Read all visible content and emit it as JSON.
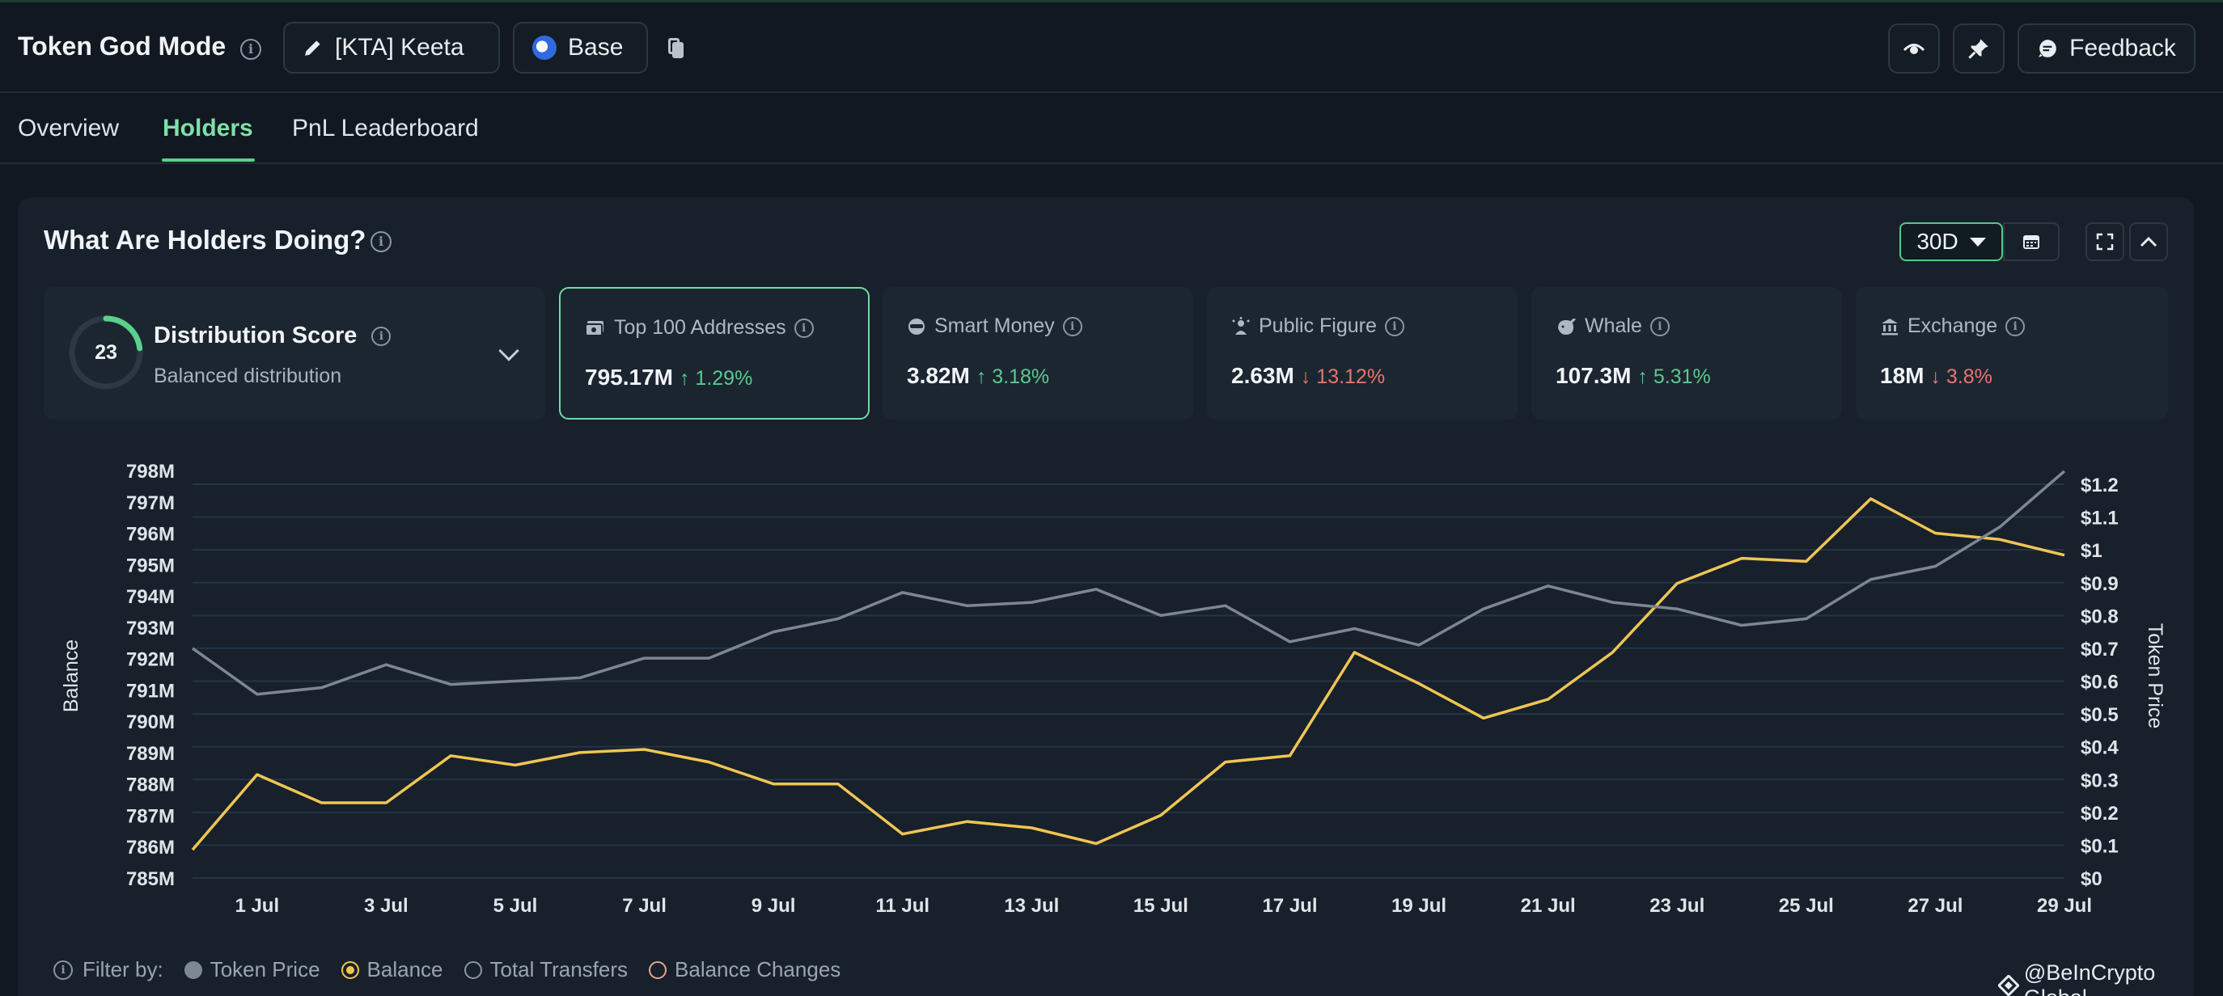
{
  "header": {
    "app_title": "Token God Mode",
    "token_label": "[KTA] Keeta",
    "chain_label": "Base",
    "feedback_label": "Feedback"
  },
  "tabs": [
    {
      "label": "Overview",
      "active": false
    },
    {
      "label": "Holders",
      "active": true
    },
    {
      "label": "PnL Leaderboard",
      "active": false
    }
  ],
  "panel": {
    "title": "What Are Holders Doing?",
    "period": "30D"
  },
  "distribution": {
    "score": "23",
    "score_fraction": 0.23,
    "title": "Distribution Score",
    "subtitle": "Balanced distribution"
  },
  "cards": [
    {
      "label": "Top 100 Addresses",
      "value": "795.17M",
      "change": "↑ 1.29%",
      "direction": "up",
      "icon": "money-icon",
      "selected": true
    },
    {
      "label": "Smart Money",
      "value": "3.82M",
      "change": "↑ 3.18%",
      "direction": "up",
      "icon": "smart-money-icon",
      "selected": false
    },
    {
      "label": "Public Figure",
      "value": "2.63M",
      "change": "↓ 13.12%",
      "direction": "down",
      "icon": "public-figure-icon",
      "selected": false
    },
    {
      "label": "Whale",
      "value": "107.3M",
      "change": "↑ 5.31%",
      "direction": "up",
      "icon": "whale-icon",
      "selected": false
    },
    {
      "label": "Exchange",
      "value": "18M",
      "change": "↓ 3.8%",
      "direction": "down",
      "icon": "exchange-icon",
      "selected": false
    }
  ],
  "filter": {
    "label": "Filter by:",
    "items": [
      "Token Price",
      "Balance",
      "Total Transfers",
      "Balance Changes"
    ]
  },
  "watermark": "@BeInCrypto Global",
  "colors": {
    "balance_line": "#f0c553",
    "price_line": "#7d8793",
    "accent": "#5ad08c",
    "up": "#5cc98c",
    "down": "#e5766f"
  },
  "chart_data": {
    "type": "line",
    "ylabel": "Balance",
    "y2label": "Token Price",
    "x": [
      "30 Jun",
      "1 Jul",
      "2 Jul",
      "3 Jul",
      "4 Jul",
      "5 Jul",
      "6 Jul",
      "7 Jul",
      "8 Jul",
      "9 Jul",
      "10 Jul",
      "11 Jul",
      "12 Jul",
      "13 Jul",
      "14 Jul",
      "15 Jul",
      "16 Jul",
      "17 Jul",
      "18 Jul",
      "19 Jul",
      "20 Jul",
      "21 Jul",
      "22 Jul",
      "23 Jul",
      "24 Jul",
      "25 Jul",
      "26 Jul",
      "27 Jul",
      "28 Jul",
      "29 Jul"
    ],
    "x_tick_labels": [
      "1 Jul",
      "3 Jul",
      "5 Jul",
      "7 Jul",
      "9 Jul",
      "11 Jul",
      "13 Jul",
      "15 Jul",
      "17 Jul",
      "19 Jul",
      "21 Jul",
      "23 Jul",
      "25 Jul",
      "27 Jul",
      "29 Jul"
    ],
    "y_tick_labels": [
      "785M",
      "786M",
      "787M",
      "788M",
      "789M",
      "790M",
      "791M",
      "792M",
      "793M",
      "794M",
      "795M",
      "796M",
      "797M",
      "798M"
    ],
    "y2_tick_labels": [
      "$0",
      "$0.1",
      "$0.2",
      "$0.3",
      "$0.4",
      "$0.5",
      "$0.6",
      "$0.7",
      "$0.8",
      "$0.9",
      "$1",
      "$1.1",
      "$1.2"
    ],
    "ylim": [
      785,
      798
    ],
    "y2lim": [
      0,
      1.2
    ],
    "grid": true,
    "series": [
      {
        "name": "Balance",
        "axis": "left",
        "color": "#f0c553",
        "values": [
          785.9,
          788.3,
          787.4,
          787.4,
          788.9,
          788.6,
          789.0,
          789.1,
          788.7,
          788.0,
          788.0,
          786.4,
          786.8,
          786.6,
          786.1,
          787.0,
          788.7,
          788.9,
          792.2,
          791.2,
          790.1,
          790.7,
          792.2,
          794.4,
          795.2,
          795.1,
          797.1,
          796.0,
          795.8,
          795.3
        ]
      },
      {
        "name": "Token Price",
        "axis": "right",
        "color": "#7d8793",
        "values": [
          0.7,
          0.56,
          0.58,
          0.65,
          0.59,
          0.6,
          0.61,
          0.67,
          0.67,
          0.75,
          0.79,
          0.87,
          0.83,
          0.84,
          0.88,
          0.8,
          0.83,
          0.72,
          0.76,
          0.71,
          0.82,
          0.89,
          0.84,
          0.82,
          0.77,
          0.79,
          0.91,
          0.95,
          1.07,
          1.24
        ]
      }
    ]
  }
}
